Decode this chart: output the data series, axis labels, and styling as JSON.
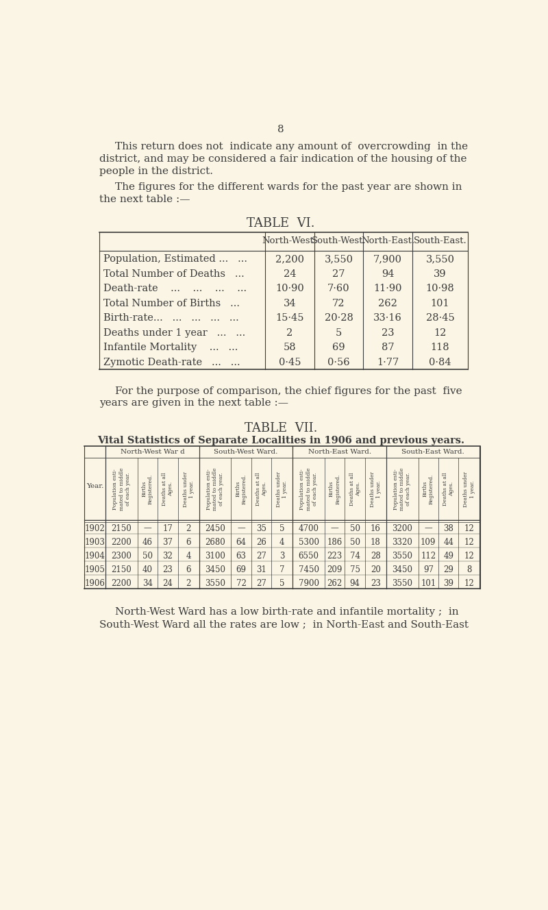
{
  "bg_color": "#faf5e4",
  "text_color": "#3a3a3a",
  "page_number": "8",
  "intro_lines_1": [
    "This return does not  indicate any amount of  overcrowding  in the",
    "district, and may be considered a fair indication of the housing of the",
    "people in the district."
  ],
  "intro_lines_2": [
    "The figures for the different wards for the past year are shown in",
    "the next table :—"
  ],
  "table6_title": "TABLE  VI.",
  "table6_headers": [
    "North-West.",
    "South-West.",
    "North-East.",
    "South-East."
  ],
  "table6_rows": [
    [
      "Population, Estimated ...   ...",
      "2,200",
      "3,550",
      "7,900",
      "3,550"
    ],
    [
      "Total Number of Deaths   ...",
      "24",
      "27",
      "94",
      "39"
    ],
    [
      "Death-rate    ...    ...    ...    ...",
      "10·90",
      "7·60",
      "11·90",
      "10·98"
    ],
    [
      "Total Number of Births   ...",
      "34",
      "72",
      "262",
      "101"
    ],
    [
      "Birth-rate...   ...   ...   ...   ...",
      "15·45",
      "20·28",
      "33·16",
      "28·45"
    ],
    [
      "Deaths under 1 year   ...   ...",
      "2",
      "5",
      "23",
      "12"
    ],
    [
      "Infantile Mortality    ...   ...",
      "58",
      "69",
      "87",
      "118"
    ],
    [
      "Zymotic Death-rate   ...   ...",
      "0·45",
      "0·56",
      "1·77",
      "0·84"
    ]
  ],
  "between_lines": [
    "For the purpose of comparison, the chief figures for the past  five",
    "years are given in the next table :—"
  ],
  "table7_title": "TABLE  VII.",
  "table7_subtitle": "Vital Statistics of Separate Localities in 1906 and previous years.",
  "table7_ward_headers": [
    "North-West War d",
    "South-West Ward.",
    "North-East Ward.",
    "South-East Ward."
  ],
  "table7_col_headers": [
    "Population esti-\nmated to middle\nof each year.",
    "Births\nRegistered.",
    "Deaths at all\nAges.",
    "Deaths under\n1 year.",
    "Population esti-\nmated to middle\nof each year.",
    "Births\nRegistered.",
    "Deaths at all\nAges.",
    "Deaths under\n1 year.",
    "Population esti-\nmated to middle\nof each year.",
    "Births\nRegistered.",
    "Deaths at all\nAges.",
    "Deaths under\n1 year.",
    "Population esti-\nmated to middle\nof each year.",
    "Births\nRegistered.",
    "Deaths at all\nAges.",
    "Deaths under\n1 year."
  ],
  "table7_rows": [
    [
      "1902",
      "2150",
      "—",
      "17",
      "2",
      "2450",
      "—",
      "35",
      "5",
      "4700",
      "—",
      "50",
      "16",
      "3200",
      "—",
      "38",
      "12"
    ],
    [
      "1903",
      "2200",
      "46",
      "37",
      "6",
      "2680",
      "64",
      "26",
      "4",
      "5300",
      "186",
      "50",
      "18",
      "3320",
      "109",
      "44",
      "12"
    ],
    [
      "1904",
      "2300",
      "50",
      "32",
      "4",
      "3100",
      "63",
      "27",
      "3",
      "6550",
      "223",
      "74",
      "28",
      "3550",
      "112",
      "49",
      "12"
    ],
    [
      "1905",
      "2150",
      "40",
      "23",
      "6",
      "3450",
      "69",
      "31",
      "7",
      "7450",
      "209",
      "75",
      "20",
      "3450",
      "97",
      "29",
      "8"
    ],
    [
      "1906",
      "2200",
      "34",
      "24",
      "2",
      "3550",
      "72",
      "27",
      "5",
      "7900",
      "262",
      "94",
      "23",
      "3550",
      "101",
      "39",
      "12"
    ]
  ],
  "footer_lines": [
    "North-West Ward has a low birth-rate and infantile mortality ;  in",
    "South-West Ward all the rates are low ;  in North-East and South-East"
  ]
}
